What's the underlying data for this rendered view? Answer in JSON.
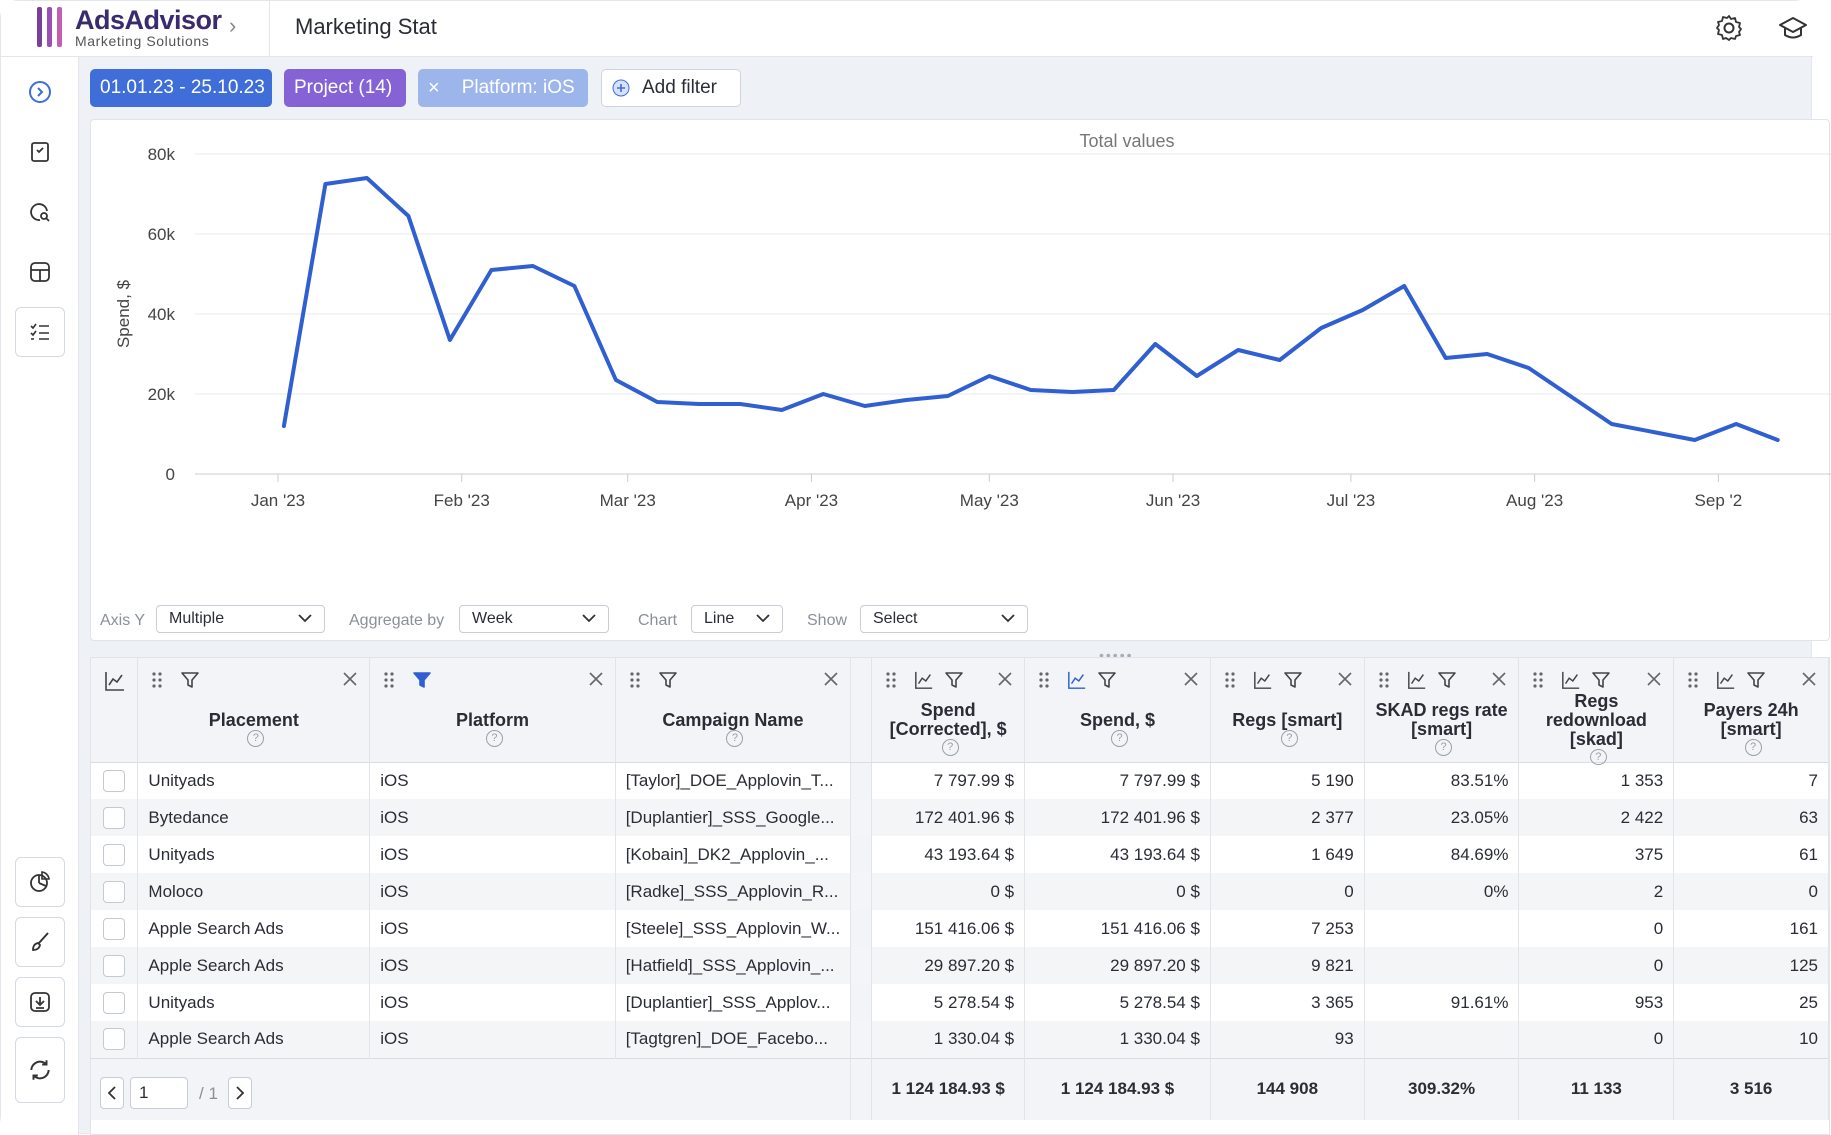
{
  "app": {
    "name": "AdsAdvisor",
    "subtitle": "Marketing Solutions",
    "page_title": "Marketing Stat"
  },
  "filters": {
    "date_range": "01.01.23 - 25.10.23",
    "project": "Project (14)",
    "platform": "Platform: iOS",
    "platform_remove": "×",
    "add_filter": "Add filter"
  },
  "chart_controls": {
    "axis_y_label": "Axis Y",
    "axis_y_value": "Multiple",
    "aggregate_label": "Aggregate by",
    "aggregate_value": "Week",
    "chart_label": "Chart",
    "chart_value": "Line",
    "show_label": "Show",
    "show_value": "Select"
  },
  "chart_data": {
    "type": "line",
    "title": "Total values",
    "ylabel": "Spend, $",
    "xlabel": "",
    "ylim": [
      0,
      80000
    ],
    "y_ticks": [
      0,
      20000,
      40000,
      60000,
      80000
    ],
    "y_tick_labels": [
      "0",
      "20k",
      "40k",
      "60k",
      "80k"
    ],
    "x_tick_labels": [
      "Jan '23",
      "Feb '23",
      "Mar '23",
      "Apr '23",
      "May '23",
      "Jun '23",
      "Jul '23",
      "Aug '23",
      "Sep '2"
    ],
    "grid": "horizontal",
    "color": "#2f5fd0",
    "series": [
      {
        "x": [
          "2023-01-02",
          "2023-01-09",
          "2023-01-16",
          "2023-01-23",
          "2023-01-30",
          "2023-02-06",
          "2023-02-13",
          "2023-02-20",
          "2023-02-27",
          "2023-03-06",
          "2023-03-13",
          "2023-03-20",
          "2023-03-27",
          "2023-04-03",
          "2023-04-10",
          "2023-04-17",
          "2023-04-24",
          "2023-05-01",
          "2023-05-08",
          "2023-05-15",
          "2023-05-22",
          "2023-05-29",
          "2023-06-05",
          "2023-06-12",
          "2023-06-19",
          "2023-06-26",
          "2023-07-03",
          "2023-07-10",
          "2023-07-17",
          "2023-07-24",
          "2023-07-31",
          "2023-08-07",
          "2023-08-14",
          "2023-08-21",
          "2023-08-28",
          "2023-09-04",
          "2023-09-11"
        ],
        "values": [
          12000,
          72500,
          74000,
          64500,
          33500,
          51000,
          52000,
          47000,
          23500,
          18000,
          17500,
          17500,
          16000,
          20000,
          17000,
          18500,
          19500,
          24500,
          21000,
          20500,
          21000,
          32500,
          24500,
          31000,
          28500,
          36500,
          41000,
          47000,
          29000,
          30000,
          26500,
          19500,
          12500,
          10500,
          8500,
          12500,
          8500
        ]
      }
    ]
  },
  "table": {
    "columns": [
      {
        "title": "Placement"
      },
      {
        "title": "Platform"
      },
      {
        "title": "Campaign Name"
      },
      {
        "title": "Spend [Corrected], $"
      },
      {
        "title": "Spend, $"
      },
      {
        "title": "Regs [smart]"
      },
      {
        "title": "SKAD regs rate [smart]"
      },
      {
        "title": "Regs redownload [skad]"
      },
      {
        "title": "Payers 24h [smart]"
      }
    ],
    "rows": [
      [
        "Unityads",
        "iOS",
        "[Taylor]_DOE_Applovin_T...",
        "7 797.99 $",
        "7 797.99 $",
        "5 190",
        "83.51%",
        "1 353",
        "7"
      ],
      [
        "Bytedance",
        "iOS",
        "[Duplantier]_SSS_Google...",
        "172 401.96 $",
        "172 401.96 $",
        "2 377",
        "23.05%",
        "2 422",
        "63"
      ],
      [
        "Unityads",
        "iOS",
        "[Kobain]_DK2_Applovin_...",
        "43 193.64 $",
        "43 193.64 $",
        "1 649",
        "84.69%",
        "375",
        "61"
      ],
      [
        "Moloco",
        "iOS",
        "[Radke]_SSS_Applovin_R...",
        "0 $",
        "0 $",
        "0",
        "0%",
        "2",
        "0"
      ],
      [
        "Apple Search Ads",
        "iOS",
        "[Steele]_SSS_Applovin_W...",
        "151 416.06 $",
        "151 416.06 $",
        "7 253",
        "",
        "0",
        "161"
      ],
      [
        "Apple Search Ads",
        "iOS",
        "[Hatfield]_SSS_Applovin_...",
        "29 897.20 $",
        "29 897.20 $",
        "9 821",
        "",
        "0",
        "125"
      ],
      [
        "Unityads",
        "iOS",
        "[Duplantier]_SSS_Applov...",
        "5 278.54 $",
        "5 278.54 $",
        "3 365",
        "91.61%",
        "953",
        "25"
      ],
      [
        "Apple Search Ads",
        "iOS",
        "[Tagtgren]_DOE_Facebo...",
        "1 330.04 $",
        "1 330.04 $",
        "93",
        "",
        "0",
        "10"
      ]
    ],
    "totals": [
      "1 124 184.93 $",
      "1 124 184.93 $",
      "144 908",
      "309.32%",
      "11 133",
      "3 516"
    ]
  },
  "pager": {
    "page": "1",
    "total": "/ 1"
  }
}
